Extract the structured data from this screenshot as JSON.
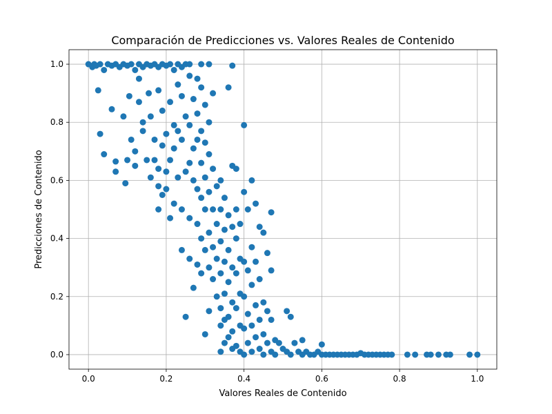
{
  "chart_data": {
    "type": "scatter",
    "title": "Comparación de Predicciones vs. Valores Reales de Contenido",
    "xlabel": "Valores Reales de Contenido",
    "ylabel": "Predicciones de Contenido",
    "xlim": [
      -0.05,
      1.05
    ],
    "ylim": [
      -0.05,
      1.05
    ],
    "xticks": [
      "0.0",
      "0.2",
      "0.4",
      "0.6",
      "0.8",
      "1.0"
    ],
    "yticks": [
      "0.0",
      "0.2",
      "0.4",
      "0.6",
      "0.8",
      "1.0"
    ],
    "grid": true,
    "marker_color": "#1f77b4",
    "series": [
      {
        "points": [
          [
            0.0,
            1.0
          ],
          [
            0.01,
            0.99
          ],
          [
            0.015,
            1.0
          ],
          [
            0.02,
            0.995
          ],
          [
            0.03,
            1.0
          ],
          [
            0.04,
            0.98
          ],
          [
            0.05,
            1.0
          ],
          [
            0.06,
            0.995
          ],
          [
            0.07,
            1.0
          ],
          [
            0.08,
            0.99
          ],
          [
            0.09,
            1.0
          ],
          [
            0.1,
            0.995
          ],
          [
            0.11,
            1.0
          ],
          [
            0.12,
            0.98
          ],
          [
            0.13,
            1.0
          ],
          [
            0.14,
            0.99
          ],
          [
            0.15,
            1.0
          ],
          [
            0.16,
            0.995
          ],
          [
            0.17,
            1.0
          ],
          [
            0.18,
            0.99
          ],
          [
            0.19,
            1.0
          ],
          [
            0.2,
            0.995
          ],
          [
            0.21,
            1.0
          ],
          [
            0.22,
            0.98
          ],
          [
            0.23,
            1.0
          ],
          [
            0.24,
            0.99
          ],
          [
            0.25,
            1.0
          ],
          [
            0.26,
            1.0
          ],
          [
            0.29,
            1.0
          ],
          [
            0.31,
            1.0
          ],
          [
            0.37,
            0.995
          ],
          [
            0.025,
            0.91
          ],
          [
            0.03,
            0.76
          ],
          [
            0.04,
            0.69
          ],
          [
            0.06,
            0.845
          ],
          [
            0.07,
            0.63
          ],
          [
            0.07,
            0.665
          ],
          [
            0.09,
            0.82
          ],
          [
            0.095,
            0.59
          ],
          [
            0.1,
            0.67
          ],
          [
            0.105,
            0.89
          ],
          [
            0.11,
            0.74
          ],
          [
            0.12,
            0.65
          ],
          [
            0.12,
            0.7
          ],
          [
            0.13,
            0.95
          ],
          [
            0.13,
            0.87
          ],
          [
            0.14,
            0.8
          ],
          [
            0.14,
            0.77
          ],
          [
            0.15,
            0.67
          ],
          [
            0.155,
            0.9
          ],
          [
            0.16,
            0.82
          ],
          [
            0.16,
            0.61
          ],
          [
            0.17,
            0.74
          ],
          [
            0.17,
            0.67
          ],
          [
            0.18,
            0.91
          ],
          [
            0.18,
            0.64
          ],
          [
            0.18,
            0.5
          ],
          [
            0.18,
            0.58
          ],
          [
            0.19,
            0.84
          ],
          [
            0.19,
            0.72
          ],
          [
            0.19,
            0.55
          ],
          [
            0.2,
            0.76
          ],
          [
            0.2,
            0.63
          ],
          [
            0.2,
            0.57
          ],
          [
            0.21,
            0.87
          ],
          [
            0.21,
            0.67
          ],
          [
            0.21,
            0.47
          ],
          [
            0.22,
            0.79
          ],
          [
            0.22,
            0.71
          ],
          [
            0.22,
            0.52
          ],
          [
            0.23,
            0.93
          ],
          [
            0.23,
            0.77
          ],
          [
            0.23,
            0.61
          ],
          [
            0.24,
            0.89
          ],
          [
            0.24,
            0.74
          ],
          [
            0.24,
            0.5
          ],
          [
            0.24,
            0.36
          ],
          [
            0.25,
            0.82
          ],
          [
            0.25,
            0.63
          ],
          [
            0.25,
            0.13
          ],
          [
            0.26,
            0.96
          ],
          [
            0.26,
            0.79
          ],
          [
            0.26,
            0.66
          ],
          [
            0.26,
            0.47
          ],
          [
            0.26,
            0.33
          ],
          [
            0.27,
            0.88
          ],
          [
            0.27,
            0.71
          ],
          [
            0.27,
            0.6
          ],
          [
            0.27,
            0.23
          ],
          [
            0.28,
            0.95
          ],
          [
            0.28,
            0.83
          ],
          [
            0.28,
            0.74
          ],
          [
            0.28,
            0.57
          ],
          [
            0.28,
            0.45
          ],
          [
            0.28,
            0.31
          ],
          [
            0.29,
            0.92
          ],
          [
            0.29,
            0.77
          ],
          [
            0.29,
            0.66
          ],
          [
            0.29,
            0.54
          ],
          [
            0.29,
            0.4
          ],
          [
            0.29,
            0.28
          ],
          [
            0.3,
            0.86
          ],
          [
            0.3,
            0.73
          ],
          [
            0.3,
            0.61
          ],
          [
            0.3,
            0.5
          ],
          [
            0.3,
            0.36
          ],
          [
            0.3,
            0.07
          ],
          [
            0.31,
            0.8
          ],
          [
            0.31,
            0.69
          ],
          [
            0.31,
            0.56
          ],
          [
            0.31,
            0.42
          ],
          [
            0.31,
            0.3
          ],
          [
            0.31,
            0.15
          ],
          [
            0.32,
            0.9
          ],
          [
            0.32,
            0.64
          ],
          [
            0.32,
            0.5
          ],
          [
            0.32,
            0.37
          ],
          [
            0.32,
            0.26
          ],
          [
            0.33,
            0.58
          ],
          [
            0.33,
            0.45
          ],
          [
            0.33,
            0.33
          ],
          [
            0.33,
            0.2
          ],
          [
            0.34,
            0.6
          ],
          [
            0.34,
            0.5
          ],
          [
            0.34,
            0.39
          ],
          [
            0.34,
            0.28
          ],
          [
            0.34,
            0.16
          ],
          [
            0.34,
            0.1
          ],
          [
            0.34,
            0.01
          ],
          [
            0.35,
            0.54
          ],
          [
            0.35,
            0.43
          ],
          [
            0.35,
            0.32
          ],
          [
            0.35,
            0.21
          ],
          [
            0.35,
            0.12
          ],
          [
            0.35,
            0.04
          ],
          [
            0.36,
            0.92
          ],
          [
            0.36,
            0.48
          ],
          [
            0.36,
            0.36
          ],
          [
            0.36,
            0.25
          ],
          [
            0.36,
            0.13
          ],
          [
            0.36,
            0.06
          ],
          [
            0.37,
            0.65
          ],
          [
            0.37,
            0.44
          ],
          [
            0.37,
            0.3
          ],
          [
            0.37,
            0.18
          ],
          [
            0.37,
            0.08
          ],
          [
            0.37,
            0.02
          ],
          [
            0.38,
            0.64
          ],
          [
            0.38,
            0.5
          ],
          [
            0.38,
            0.4
          ],
          [
            0.38,
            0.28
          ],
          [
            0.38,
            0.16
          ],
          [
            0.38,
            0.03
          ],
          [
            0.39,
            0.45
          ],
          [
            0.39,
            0.33
          ],
          [
            0.39,
            0.21
          ],
          [
            0.39,
            0.1
          ],
          [
            0.39,
            0.01
          ],
          [
            0.4,
            0.79
          ],
          [
            0.4,
            0.56
          ],
          [
            0.4,
            0.32
          ],
          [
            0.4,
            0.2
          ],
          [
            0.4,
            0.09
          ],
          [
            0.4,
            0.0
          ],
          [
            0.41,
            0.5
          ],
          [
            0.41,
            0.29
          ],
          [
            0.41,
            0.14
          ],
          [
            0.41,
            0.04
          ],
          [
            0.42,
            0.6
          ],
          [
            0.42,
            0.37
          ],
          [
            0.42,
            0.24
          ],
          [
            0.42,
            0.1
          ],
          [
            0.42,
            0.01
          ],
          [
            0.43,
            0.52
          ],
          [
            0.43,
            0.32
          ],
          [
            0.43,
            0.17
          ],
          [
            0.43,
            0.06
          ],
          [
            0.44,
            0.44
          ],
          [
            0.44,
            0.26
          ],
          [
            0.44,
            0.12
          ],
          [
            0.44,
            0.02
          ],
          [
            0.45,
            0.42
          ],
          [
            0.45,
            0.18
          ],
          [
            0.45,
            0.07
          ],
          [
            0.45,
            0.0
          ],
          [
            0.46,
            0.35
          ],
          [
            0.46,
            0.15
          ],
          [
            0.46,
            0.04
          ],
          [
            0.47,
            0.49
          ],
          [
            0.47,
            0.29
          ],
          [
            0.47,
            0.12
          ],
          [
            0.47,
            0.01
          ],
          [
            0.48,
            0.05
          ],
          [
            0.48,
            0.0
          ],
          [
            0.49,
            0.04
          ],
          [
            0.5,
            0.02
          ],
          [
            0.51,
            0.15
          ],
          [
            0.51,
            0.01
          ],
          [
            0.52,
            0.13
          ],
          [
            0.52,
            0.0
          ],
          [
            0.53,
            0.04
          ],
          [
            0.54,
            0.01
          ],
          [
            0.55,
            0.05
          ],
          [
            0.55,
            0.0
          ],
          [
            0.56,
            0.01
          ],
          [
            0.57,
            0.0
          ],
          [
            0.58,
            0.0
          ],
          [
            0.59,
            0.01
          ],
          [
            0.6,
            0.035
          ],
          [
            0.6,
            0.0
          ],
          [
            0.61,
            0.0
          ],
          [
            0.62,
            0.0
          ],
          [
            0.63,
            0.0
          ],
          [
            0.64,
            0.0
          ],
          [
            0.65,
            0.0
          ],
          [
            0.66,
            0.0
          ],
          [
            0.67,
            0.0
          ],
          [
            0.68,
            0.0
          ],
          [
            0.69,
            0.0
          ],
          [
            0.7,
            0.005
          ],
          [
            0.71,
            0.0
          ],
          [
            0.72,
            0.0
          ],
          [
            0.73,
            0.0
          ],
          [
            0.74,
            0.0
          ],
          [
            0.75,
            0.0
          ],
          [
            0.76,
            0.0
          ],
          [
            0.77,
            0.0
          ],
          [
            0.78,
            0.0
          ],
          [
            0.82,
            0.0
          ],
          [
            0.84,
            0.0
          ],
          [
            0.87,
            0.0
          ],
          [
            0.88,
            0.0
          ],
          [
            0.9,
            0.0
          ],
          [
            0.92,
            0.0
          ],
          [
            0.93,
            0.0
          ],
          [
            0.98,
            0.0
          ],
          [
            1.0,
            0.0
          ]
        ]
      }
    ]
  }
}
